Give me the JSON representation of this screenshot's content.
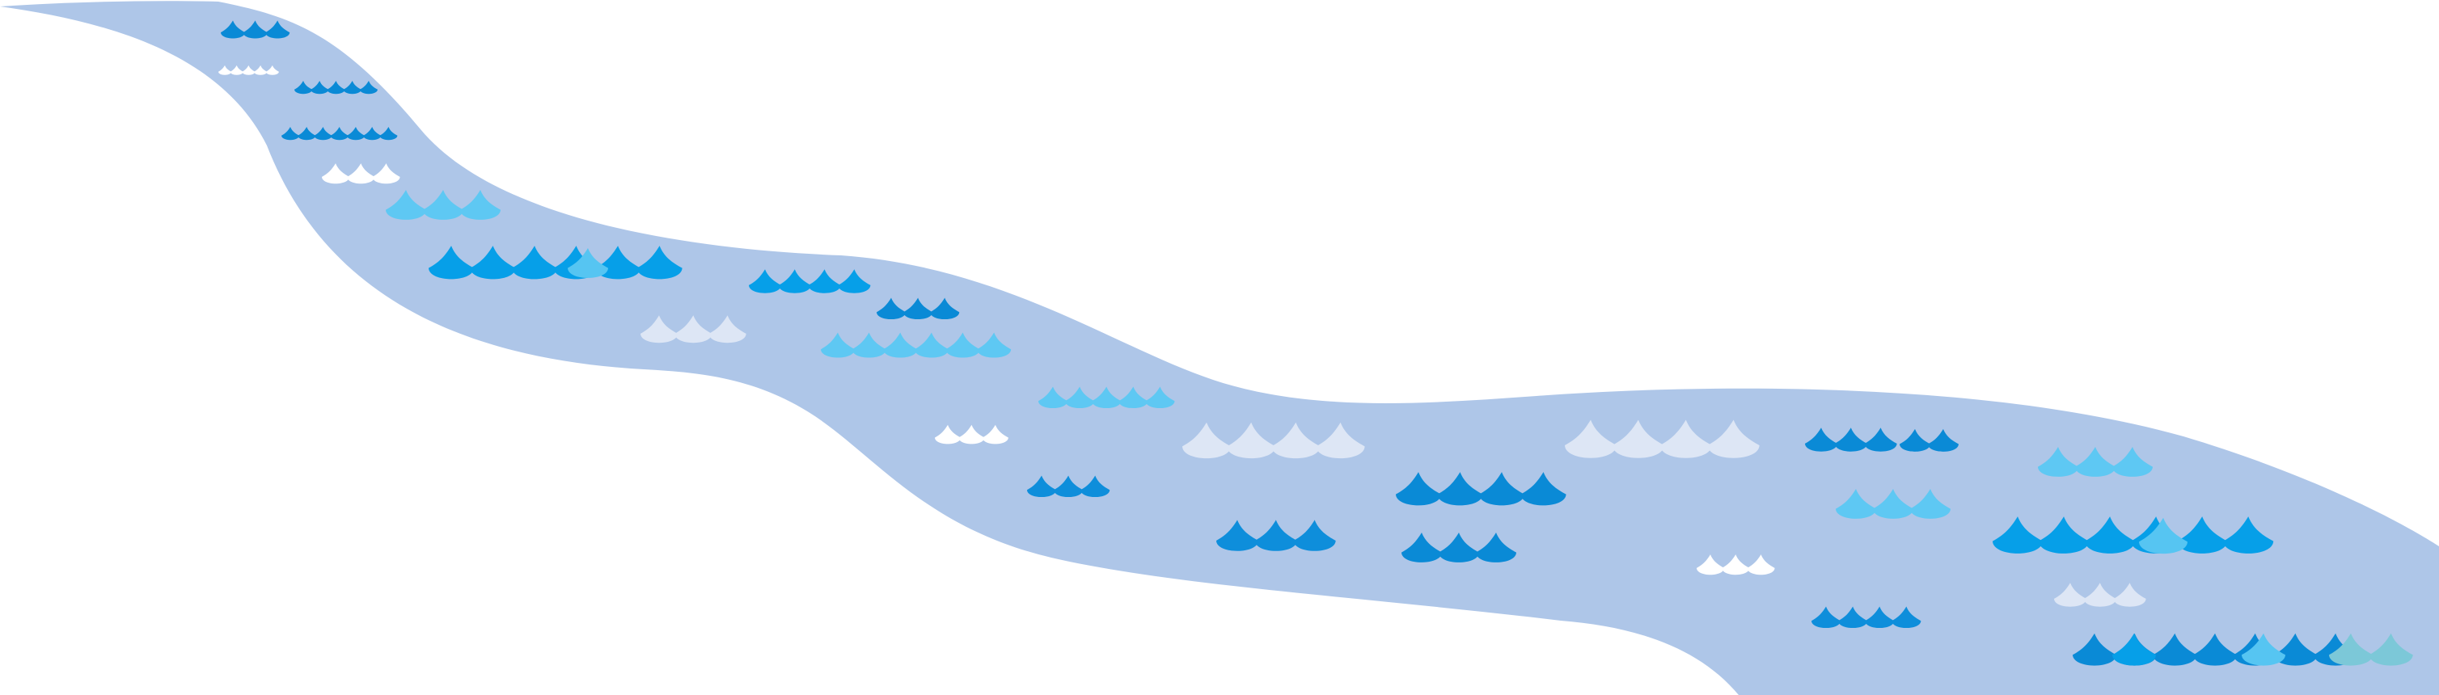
{
  "colors": {
    "background": "#ffffff",
    "river": "#aec6e8",
    "deep_blue": "#0a8ad6",
    "bright_blue": "#069fe8",
    "mid_blue": "#0e8edb",
    "sky_blue": "#56c5f2",
    "light_sky": "#5ec8f3",
    "white": "#ffffff",
    "pale": "#dde6f5",
    "teal": "#7cc8d8"
  },
  "icons": [
    "river-shape",
    "wave-icon"
  ]
}
